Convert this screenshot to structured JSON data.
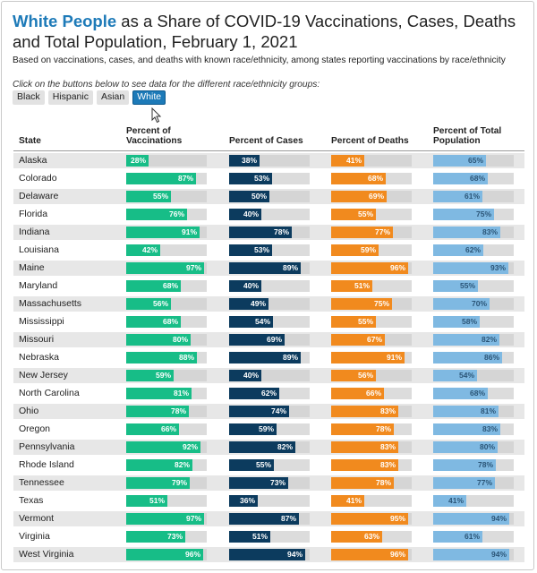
{
  "title": {
    "highlight": "White People",
    "rest": " as a Share of COVID-19 Vaccinations, Cases, Deaths and Total Population, February 1, 2021"
  },
  "subtitle": "Based on vaccinations, cases, and deaths with known race/ethnicity, among states reporting vaccinations by race/ethnicity",
  "instruction": "Click on the buttons below to see data for the different race/ethnicity groups:",
  "buttons": [
    "Black",
    "Hispanic",
    "Asian",
    "White"
  ],
  "active_button": "White",
  "chart_data": {
    "type": "bar",
    "columns": [
      {
        "key": "state",
        "label": "State"
      },
      {
        "key": "vaccinations",
        "label": "Percent of Vaccinations",
        "color": "#17bd87",
        "label_color": "#ffffff"
      },
      {
        "key": "cases",
        "label": "Percent of Cases",
        "color": "#0c3b5e",
        "label_color": "#ffffff"
      },
      {
        "key": "deaths",
        "label": "Percent of Deaths",
        "color": "#f18a1e",
        "label_color": "#ffffff"
      },
      {
        "key": "population",
        "label": "Percent of Total Population",
        "color": "#7fb9e2",
        "label_color": "#2b5577"
      }
    ],
    "xlim": [
      0,
      100
    ],
    "rows": [
      {
        "state": "Alaska",
        "vaccinations": 28,
        "cases": 38,
        "deaths": 41,
        "population": 65
      },
      {
        "state": "Colorado",
        "vaccinations": 87,
        "cases": 53,
        "deaths": 68,
        "population": 68
      },
      {
        "state": "Delaware",
        "vaccinations": 55,
        "cases": 50,
        "deaths": 69,
        "population": 61
      },
      {
        "state": "Florida",
        "vaccinations": 76,
        "cases": 40,
        "deaths": 55,
        "population": 75
      },
      {
        "state": "Indiana",
        "vaccinations": 91,
        "cases": 78,
        "deaths": 77,
        "population": 83
      },
      {
        "state": "Louisiana",
        "vaccinations": 42,
        "cases": 53,
        "deaths": 59,
        "population": 62
      },
      {
        "state": "Maine",
        "vaccinations": 97,
        "cases": 89,
        "deaths": 96,
        "population": 93
      },
      {
        "state": "Maryland",
        "vaccinations": 68,
        "cases": 40,
        "deaths": 51,
        "population": 55
      },
      {
        "state": "Massachusetts",
        "vaccinations": 56,
        "cases": 49,
        "deaths": 75,
        "population": 70
      },
      {
        "state": "Mississippi",
        "vaccinations": 68,
        "cases": 54,
        "deaths": 55,
        "population": 58
      },
      {
        "state": "Missouri",
        "vaccinations": 80,
        "cases": 69,
        "deaths": 67,
        "population": 82
      },
      {
        "state": "Nebraska",
        "vaccinations": 88,
        "cases": 89,
        "deaths": 91,
        "population": 86
      },
      {
        "state": "New Jersey",
        "vaccinations": 59,
        "cases": 40,
        "deaths": 56,
        "population": 54
      },
      {
        "state": "North Carolina",
        "vaccinations": 81,
        "cases": 62,
        "deaths": 66,
        "population": 68
      },
      {
        "state": "Ohio",
        "vaccinations": 78,
        "cases": 74,
        "deaths": 83,
        "population": 81
      },
      {
        "state": "Oregon",
        "vaccinations": 66,
        "cases": 59,
        "deaths": 78,
        "population": 83
      },
      {
        "state": "Pennsylvania",
        "vaccinations": 92,
        "cases": 82,
        "deaths": 83,
        "population": 80
      },
      {
        "state": "Rhode Island",
        "vaccinations": 82,
        "cases": 55,
        "deaths": 83,
        "population": 78
      },
      {
        "state": "Tennessee",
        "vaccinations": 79,
        "cases": 73,
        "deaths": 78,
        "population": 77
      },
      {
        "state": "Texas",
        "vaccinations": 51,
        "cases": 36,
        "deaths": 41,
        "population": 41
      },
      {
        "state": "Vermont",
        "vaccinations": 97,
        "cases": 87,
        "deaths": 95,
        "population": 94
      },
      {
        "state": "Virginia",
        "vaccinations": 73,
        "cases": 51,
        "deaths": 63,
        "population": 61
      },
      {
        "state": "West Virginia",
        "vaccinations": 96,
        "cases": 94,
        "deaths": 96,
        "population": 94
      }
    ]
  }
}
